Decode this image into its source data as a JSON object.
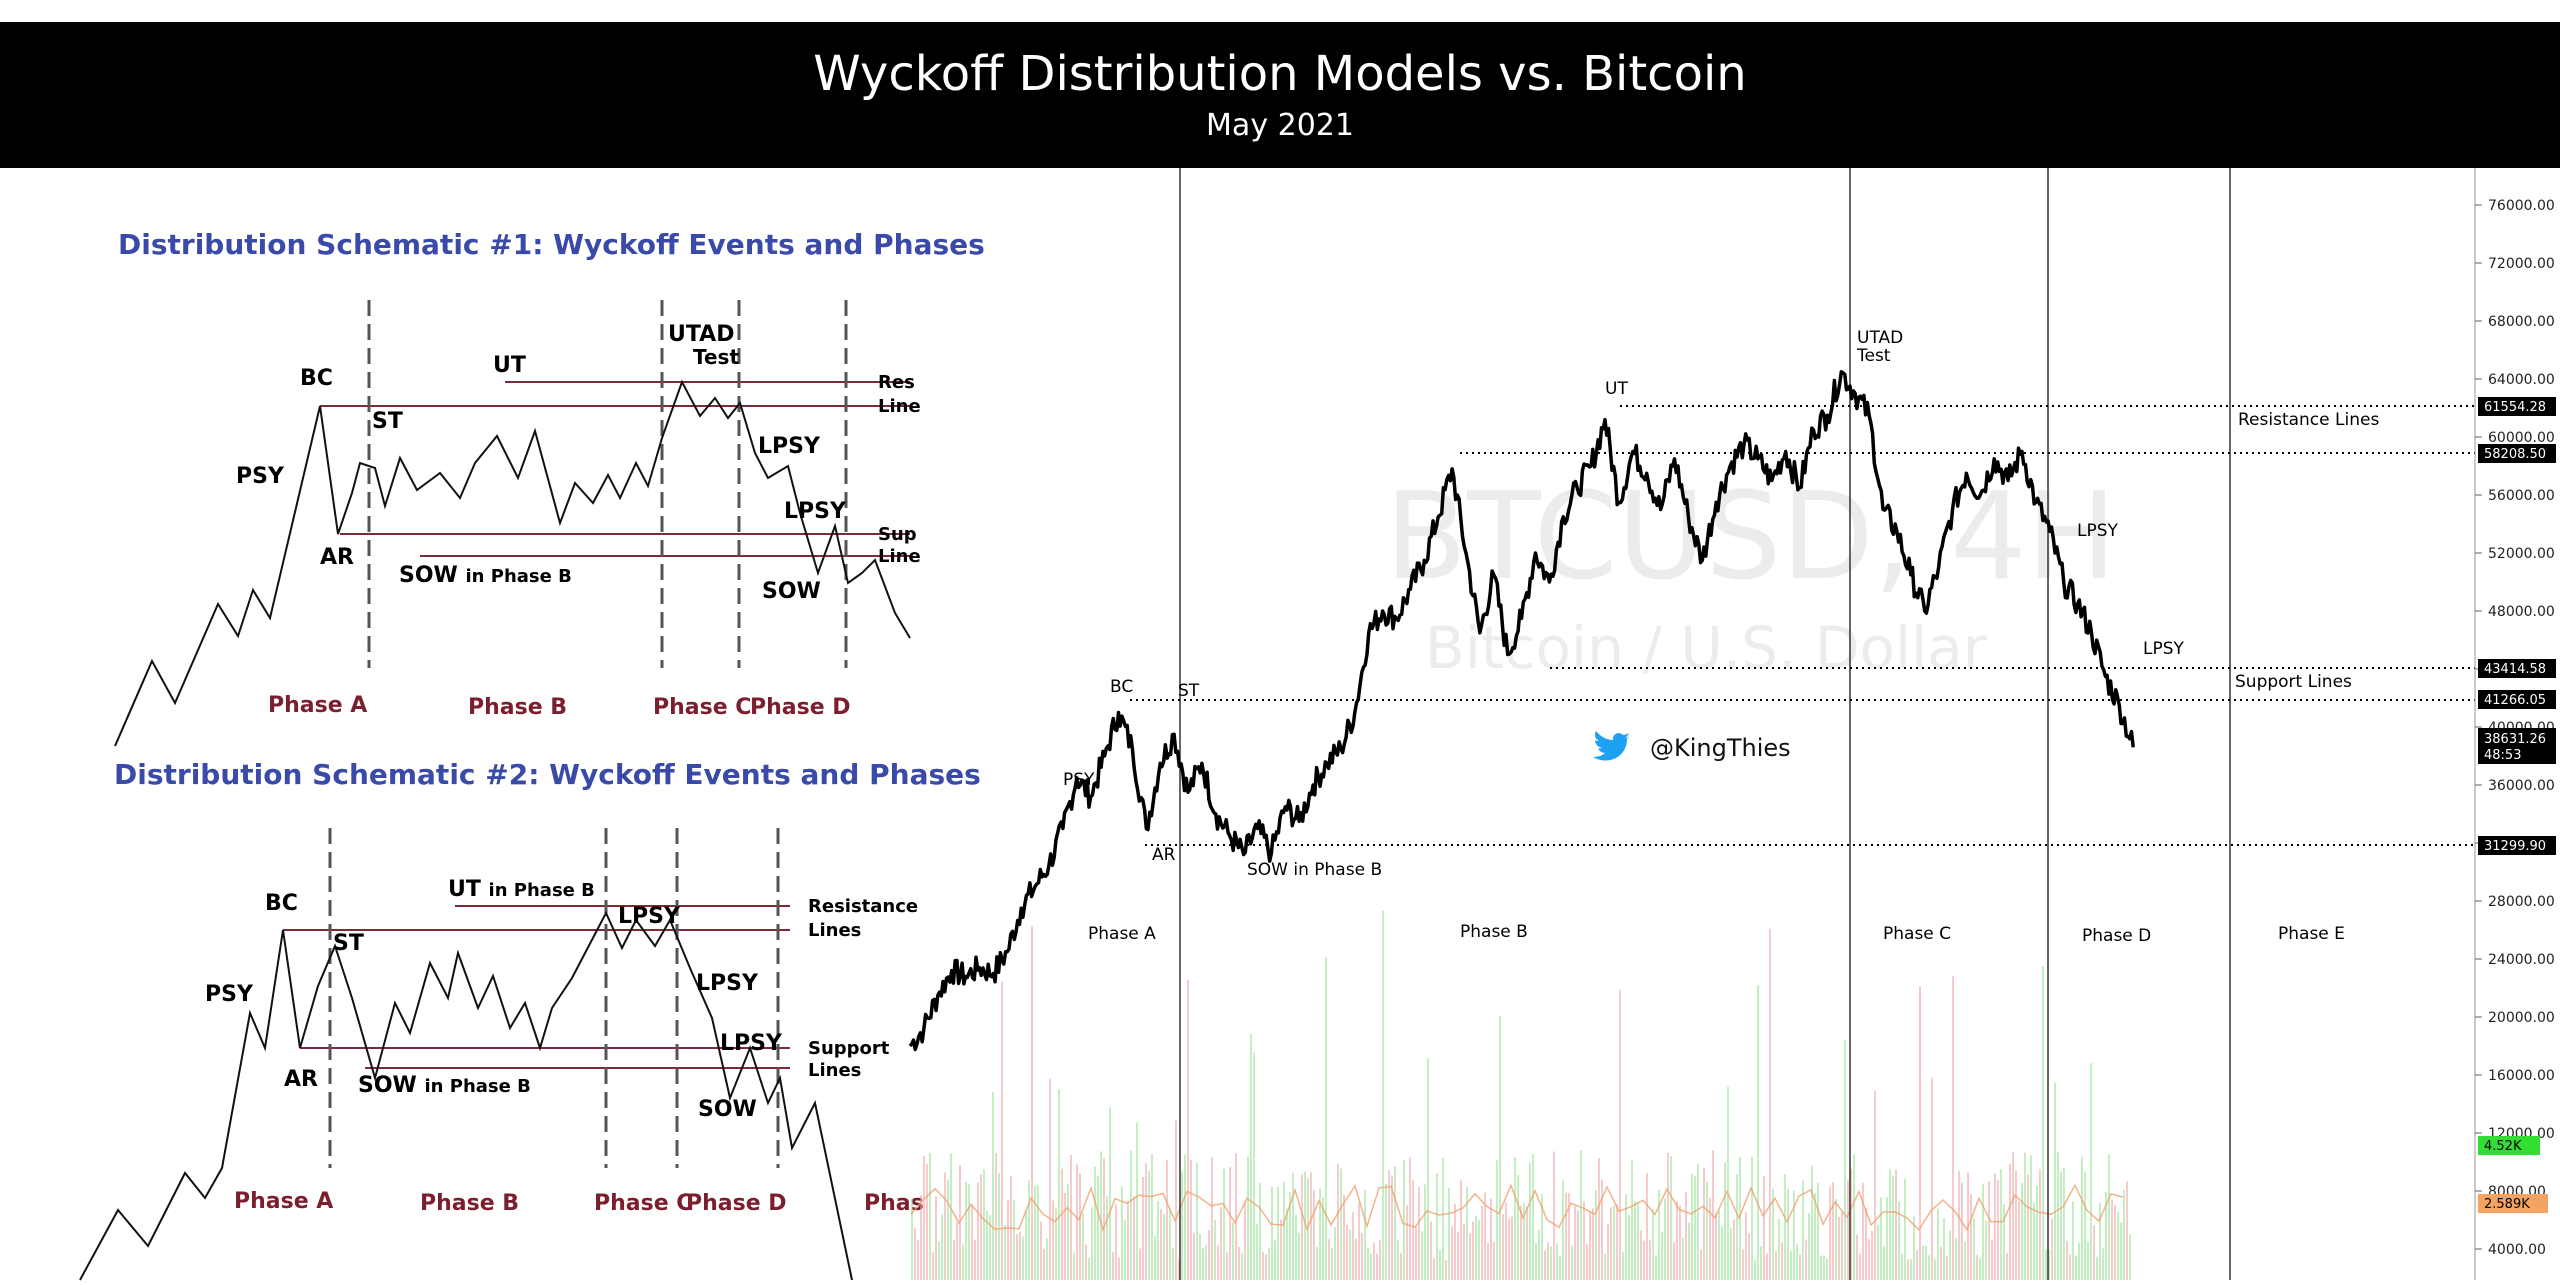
{
  "header": {
    "title": "Wyckoff Distribution Models vs. Bitcoin",
    "subtitle": "May 2021"
  },
  "colors": {
    "schematic_title": "#3a4aa8",
    "phase_label": "#7b1f2e",
    "level_line": "#7b2a3a",
    "header_bg": "#000000",
    "price_line": "#000000",
    "vol_up": "#8fe08f",
    "vol_down": "#f0a0a0",
    "vol_ma": "#f0a070",
    "volume_badge": "#33dd33",
    "volume_ma_badge": "#f4a460",
    "twitter_blue": "#1da1f2"
  },
  "schematic1": {
    "title": "Distribution Schematic #1: Wyckoff Events and Phases",
    "labels": {
      "bc": "BC",
      "psy": "PSY",
      "st": "ST",
      "ar": "AR",
      "ut": "UT",
      "utad": "UTAD",
      "test": "Test",
      "lpsy1": "LPSY",
      "lpsy2": "LPSY",
      "sow_b": "SOW",
      "sow_b_suffix": "in Phase B",
      "sow": "SOW",
      "res1": "Res",
      "res2": "Line",
      "sup1": "Sup",
      "sup2": "Line"
    },
    "phases": [
      "Phase A",
      "Phase B",
      "Phase C",
      "Phase D"
    ]
  },
  "schematic2": {
    "title": "Distribution Schematic #2: Wyckoff Events and Phases",
    "labels": {
      "bc": "BC",
      "psy": "PSY",
      "st": "ST",
      "ar": "AR",
      "ut": "UT",
      "ut_suffix": "in Phase B",
      "lpsy1": "LPSY",
      "lpsy2": "LPSY",
      "lpsy3": "LPSY",
      "sow_b": "SOW",
      "sow_b_suffix": "in Phase B",
      "sow": "SOW",
      "res1": "Resistance",
      "res2": "Lines",
      "sup1": "Support",
      "sup2": "Lines"
    },
    "phases": [
      "Phase A",
      "Phase B",
      "Phase C",
      "Phase D",
      "Phas"
    ]
  },
  "btc": {
    "watermark_symbol": "BTCUSD, 4H",
    "watermark_name": "Bitcoin / U.S. Dollar",
    "handle": "@KingThies",
    "y_axis_ticks": [
      76000,
      72000,
      68000,
      64000,
      60000,
      56000,
      52000,
      48000,
      44000,
      40000,
      36000,
      32000,
      28000,
      24000,
      20000,
      16000,
      12000,
      8000,
      4000
    ],
    "tick_labels": [
      "76000.00",
      "72000.00",
      "68000.00",
      "64000.00",
      "60000.00",
      "56000.00",
      "52000.00",
      "48000.00",
      "44000.00",
      "40000.00",
      "36000.00",
      "32000.00",
      "28000.00",
      "24000.00",
      "20000.00",
      "16000.00",
      "12000.00",
      "8000.00",
      "4000.00"
    ],
    "price_levels": [
      {
        "value": 61554.28,
        "label": "61554.28"
      },
      {
        "value": 58208.5,
        "label": "58208.50"
      },
      {
        "value": 43414.58,
        "label": "43414.58"
      },
      {
        "value": 41266.05,
        "label": "41266.05"
      },
      {
        "value": 31299.9,
        "label": "31299.90"
      }
    ],
    "current_price": {
      "value": 38631.26,
      "label": "38631.26",
      "countdown": "48:53"
    },
    "volume_badge": "4.52K",
    "volume_ma_badge": "2.589K",
    "events": {
      "psy": "PSY",
      "bc": "BC",
      "st": "ST",
      "ar": "AR",
      "sow_b": "SOW in Phase B",
      "ut": "UT",
      "utad": "UTAD",
      "test": "Test",
      "lpsy1": "LPSY",
      "lpsy2": "LPSY"
    },
    "line_labels": {
      "resistance": "Resistance Lines",
      "support": "Support Lines"
    },
    "phases": [
      "Phase A",
      "Phase B",
      "Phase C",
      "Phase D",
      "Phase E"
    ]
  },
  "chart_data": {
    "type": "line",
    "series": [
      {
        "values": [
          {
            "x": 0,
            "y": 18000
          },
          {
            "x": 1,
            "y": 19200
          },
          {
            "x": 2,
            "y": 21500
          },
          {
            "x": 3,
            "y": 23200
          },
          {
            "x": 4,
            "y": 22800
          },
          {
            "x": 5,
            "y": 23400
          },
          {
            "x": 6,
            "y": 23000
          },
          {
            "x": 7,
            "y": 24500
          },
          {
            "x": 8,
            "y": 27500
          },
          {
            "x": 9,
            "y": 29000
          },
          {
            "x": 10,
            "y": 30500
          },
          {
            "x": 11,
            "y": 33000
          },
          {
            "x": 12,
            "y": 36500
          },
          {
            "x": 13,
            "y": 35200
          },
          {
            "x": 14,
            "y": 38000
          },
          {
            "x": 15,
            "y": 41000
          },
          {
            "x": 16,
            "y": 38500
          },
          {
            "x": 17,
            "y": 33000
          },
          {
            "x": 18,
            "y": 37500
          },
          {
            "x": 19,
            "y": 39500
          },
          {
            "x": 20,
            "y": 35500
          },
          {
            "x": 21,
            "y": 37500
          },
          {
            "x": 22,
            "y": 34000
          },
          {
            "x": 23,
            "y": 32500
          },
          {
            "x": 24,
            "y": 31200
          },
          {
            "x": 25,
            "y": 33000
          },
          {
            "x": 26,
            "y": 31300
          },
          {
            "x": 27,
            "y": 34500
          },
          {
            "x": 28,
            "y": 33500
          },
          {
            "x": 29,
            "y": 36000
          },
          {
            "x": 30,
            "y": 37500
          },
          {
            "x": 31,
            "y": 38500
          },
          {
            "x": 32,
            "y": 41000
          },
          {
            "x": 33,
            "y": 46500
          },
          {
            "x": 34,
            "y": 48000
          },
          {
            "x": 35,
            "y": 47500
          },
          {
            "x": 36,
            "y": 49500
          },
          {
            "x": 37,
            "y": 51500
          },
          {
            "x": 38,
            "y": 54500
          },
          {
            "x": 39,
            "y": 57800
          },
          {
            "x": 40,
            "y": 52000
          },
          {
            "x": 41,
            "y": 46500
          },
          {
            "x": 42,
            "y": 50500
          },
          {
            "x": 43,
            "y": 45000
          },
          {
            "x": 44,
            "y": 47500
          },
          {
            "x": 45,
            "y": 52000
          },
          {
            "x": 46,
            "y": 50000
          },
          {
            "x": 47,
            "y": 54500
          },
          {
            "x": 48,
            "y": 56500
          },
          {
            "x": 49,
            "y": 58000
          },
          {
            "x": 50,
            "y": 61200
          },
          {
            "x": 51,
            "y": 55500
          },
          {
            "x": 52,
            "y": 59000
          },
          {
            "x": 53,
            "y": 57500
          },
          {
            "x": 54,
            "y": 55000
          },
          {
            "x": 55,
            "y": 58500
          },
          {
            "x": 56,
            "y": 54500
          },
          {
            "x": 57,
            "y": 51500
          },
          {
            "x": 58,
            "y": 55500
          },
          {
            "x": 59,
            "y": 58000
          },
          {
            "x": 60,
            "y": 59500
          },
          {
            "x": 61,
            "y": 58500
          },
          {
            "x": 62,
            "y": 57000
          },
          {
            "x": 63,
            "y": 59000
          },
          {
            "x": 64,
            "y": 56500
          },
          {
            "x": 65,
            "y": 60500
          },
          {
            "x": 66,
            "y": 61500
          },
          {
            "x": 67,
            "y": 64500
          },
          {
            "x": 68,
            "y": 63000
          },
          {
            "x": 69,
            "y": 61500
          },
          {
            "x": 70,
            "y": 55000
          },
          {
            "x": 71,
            "y": 53500
          },
          {
            "x": 72,
            "y": 50500
          },
          {
            "x": 73,
            "y": 48000
          },
          {
            "x": 74,
            "y": 51000
          },
          {
            "x": 75,
            "y": 55000
          },
          {
            "x": 76,
            "y": 57500
          },
          {
            "x": 77,
            "y": 56000
          },
          {
            "x": 78,
            "y": 58500
          },
          {
            "x": 79,
            "y": 57000
          },
          {
            "x": 80,
            "y": 59000
          },
          {
            "x": 81,
            "y": 55500
          },
          {
            "x": 82,
            "y": 53500
          },
          {
            "x": 83,
            "y": 50000
          },
          {
            "x": 84,
            "y": 48500
          },
          {
            "x": 85,
            "y": 46500
          },
          {
            "x": 86,
            "y": 43500
          },
          {
            "x": 87,
            "y": 41500
          },
          {
            "x": 88,
            "y": 38600
          }
        ]
      }
    ],
    "ylim": [
      0,
      78000
    ],
    "grid": false
  }
}
